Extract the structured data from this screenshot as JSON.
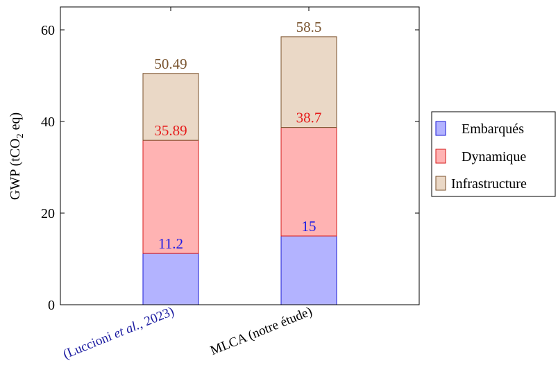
{
  "chart_data": {
    "type": "bar",
    "stacked": true,
    "categories": [
      {
        "parts": [
          {
            "text": "(Luccioni ",
            "italic": false
          },
          {
            "text": "et al.",
            "italic": true
          },
          {
            "text": ", 2023)",
            "italic": false
          }
        ],
        "color": "#1a1aa0"
      },
      {
        "parts": [
          {
            "text": "MLCA (notre étude)",
            "italic": false
          }
        ],
        "color": "#000000"
      }
    ],
    "series": [
      {
        "name": "Embarqués",
        "values": [
          11.2,
          15
        ],
        "fill": "#b3b3ff",
        "stroke": "#1a1ad6",
        "label_color": "#1a1ae6"
      },
      {
        "name": "Dynamique",
        "values": [
          24.69,
          23.7
        ],
        "fill": "#ffb3b3",
        "stroke": "#d61a1a",
        "label_color": "#e61a1a"
      },
      {
        "name": "Infrastructure",
        "values": [
          14.6,
          19.8
        ],
        "fill": "#ead8c6",
        "stroke": "#7a4f2a",
        "label_color": "#7a5530"
      }
    ],
    "cumulative_labels": [
      [
        "11.2",
        "35.89",
        "50.49"
      ],
      [
        "15",
        "38.7",
        "58.5"
      ]
    ],
    "ylabel_prefix": "GWP (tCO",
    "ylabel_sub": "2",
    "ylabel_suffix": " eq)",
    "ylim": [
      0,
      65
    ],
    "yticks": [
      0,
      20,
      40,
      60
    ],
    "legend_position": "right"
  }
}
